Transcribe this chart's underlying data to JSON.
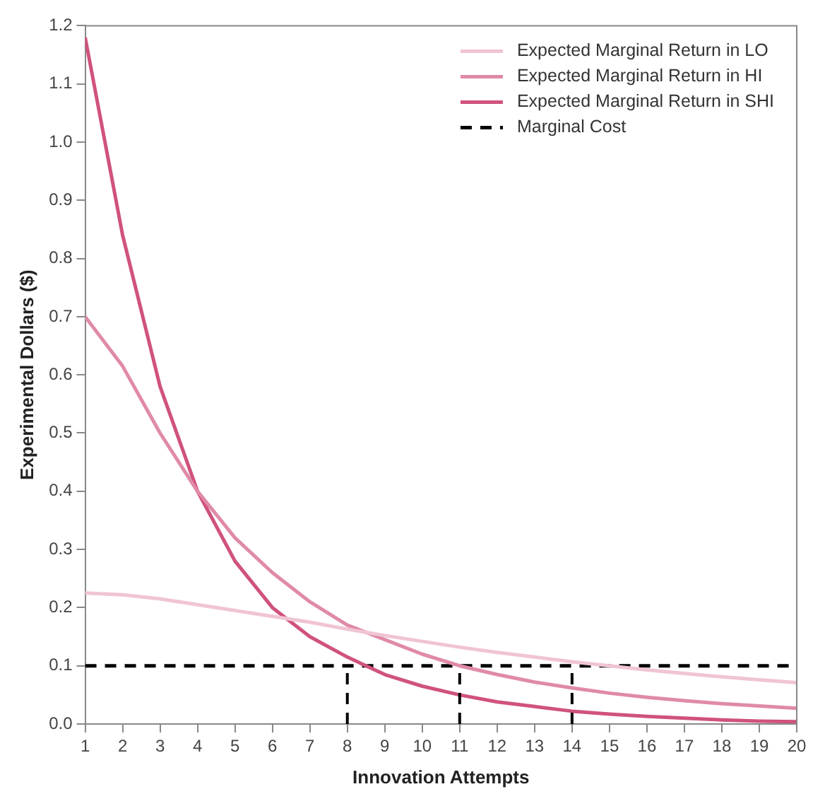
{
  "chart_data": {
    "type": "line",
    "xlabel": "Innovation Attempts",
    "ylabel": "Experimental Dollars ($)",
    "x": [
      1,
      2,
      3,
      4,
      5,
      6,
      7,
      8,
      9,
      10,
      11,
      12,
      13,
      14,
      15,
      16,
      17,
      18,
      19,
      20
    ],
    "xlim": [
      1,
      20
    ],
    "xticks": [
      1,
      2,
      3,
      4,
      5,
      6,
      7,
      8,
      9,
      10,
      11,
      12,
      13,
      14,
      15,
      16,
      17,
      18,
      19,
      20
    ],
    "ylim": [
      0,
      1.2
    ],
    "yticks": [
      {
        "value": 0,
        "label": "0.0"
      },
      {
        "value": 0.1,
        "label": "0.1"
      },
      {
        "value": 0.2,
        "label": "0.2"
      },
      {
        "value": 0.3,
        "label": "0.3"
      },
      {
        "value": 0.4,
        "label": "0.4"
      },
      {
        "value": 0.5,
        "label": "0.5"
      },
      {
        "value": 0.6,
        "label": "0.6"
      },
      {
        "value": 0.7,
        "label": "0.7"
      },
      {
        "value": 0.8,
        "label": "0.8"
      },
      {
        "value": 0.9,
        "label": "0.9"
      },
      {
        "value": 1.0,
        "label": "1.0"
      },
      {
        "value": 1.1,
        "label": "1.1"
      },
      {
        "value": 1.2,
        "label": "1.2"
      }
    ],
    "grid": false,
    "legend": "top right",
    "marker": "none",
    "series": [
      {
        "name": "Expected Marginal Return in LO",
        "color": "#f0c4d4",
        "line_style": "solid",
        "values": [
          0.225,
          0.222,
          0.215,
          0.205,
          0.195,
          0.185,
          0.175,
          0.163,
          0.152,
          0.142,
          0.132,
          0.123,
          0.115,
          0.107,
          0.1,
          0.093,
          0.087,
          0.081,
          0.076,
          0.071
        ]
      },
      {
        "name": "Expected Marginal Return in HI",
        "color": "#e08aa8",
        "line_style": "solid",
        "values": [
          0.7,
          0.615,
          0.5,
          0.4,
          0.32,
          0.26,
          0.21,
          0.17,
          0.145,
          0.12,
          0.1,
          0.085,
          0.072,
          0.062,
          0.053,
          0.046,
          0.04,
          0.035,
          0.031,
          0.027
        ]
      },
      {
        "name": "Expected Marginal Return in SHI",
        "color": "#d0527e",
        "line_style": "solid",
        "values": [
          1.18,
          0.84,
          0.58,
          0.4,
          0.28,
          0.2,
          0.15,
          0.115,
          0.085,
          0.065,
          0.05,
          0.038,
          0.03,
          0.022,
          0.017,
          0.013,
          0.01,
          0.007,
          0.005,
          0.004
        ]
      },
      {
        "name": "Marginal Cost",
        "color": "#000000",
        "line_style": "dashed",
        "values": [
          0.1,
          0.1,
          0.1,
          0.1,
          0.1,
          0.1,
          0.1,
          0.1,
          0.1,
          0.1,
          0.1,
          0.1,
          0.1,
          0.1,
          0.1,
          0.1,
          0.1,
          0.1,
          0.1,
          0.1
        ]
      }
    ],
    "ref_lines": [
      {
        "axis": "x",
        "value": 8,
        "color": "#000000",
        "line_style": "dashed"
      },
      {
        "axis": "x",
        "value": 11,
        "color": "#000000",
        "line_style": "dashed"
      },
      {
        "axis": "x",
        "value": 14,
        "color": "#000000",
        "line_style": "dashed"
      }
    ]
  }
}
